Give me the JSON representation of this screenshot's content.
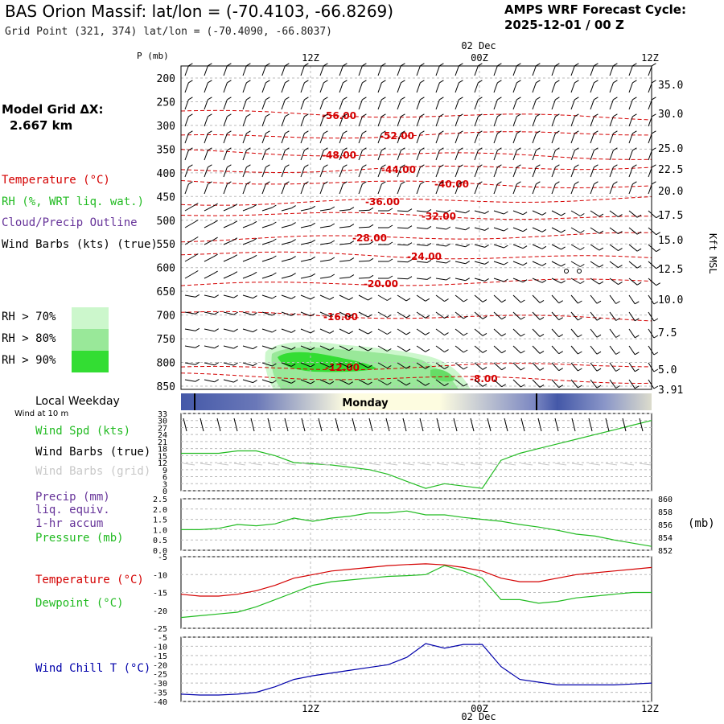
{
  "header": {
    "title": "BAS Orion Massif:  lat/lon = (-70.4103, -66.8269)",
    "subtitle": "Grid Point (321, 374) lat/lon = (-70.4090, -66.8037)",
    "cycle_label": "AMPS WRF Forecast Cycle:",
    "cycle_value": "2025-12-01 / 00  Z"
  },
  "model_grid": {
    "label": "Model Grid ΔX:",
    "value": "2.667 km"
  },
  "colors": {
    "temperature": "#d40000",
    "rh": "#22bb22",
    "cloud": "#663399",
    "windchill": "#0000aa",
    "rh70": "#ccf7cc",
    "rh80": "#99e899",
    "rh90": "#33dd33",
    "grid": "#bbbbbb",
    "weekday_dark": "#4458a8",
    "weekday_light": "#fdfce0"
  },
  "legend": {
    "temperature": "Temperature (°C)",
    "rh": "RH (%, WRT liq. wat.)",
    "cloud": "Cloud/Precip Outline",
    "wind": "Wind Barbs (kts) (true)",
    "rh70": "RH > 70%",
    "rh80": "RH > 80%",
    "rh90": "RH > 90%"
  },
  "time_axis": {
    "top_date": "02 Dec",
    "bottom_date": "02 Dec",
    "labels": [
      "12Z",
      "00Z",
      "12Z"
    ]
  },
  "weekday": {
    "label": "Local Weekday",
    "day": "Monday"
  },
  "wind10": {
    "caption": "Wind at 10 m",
    "spd": "Wind Spd (kts)",
    "barbs_true": "Wind Barbs (true)",
    "barbs_grid": "Wind Barbs (grid)"
  },
  "precip_legend": {
    "precip": "Precip (mm)",
    "liq": "liq. equiv.",
    "accum": "1-hr accum",
    "pressure": "Pressure (mb)",
    "right_unit": "(mb)"
  },
  "temp_legend": {
    "temp": "Temperature (°C)",
    "dew": "Dewpoint (°C)"
  },
  "chill_legend": {
    "chill": "Wind Chill T (°C)"
  },
  "chart_data": [
    {
      "type": "line",
      "name": "cross-section",
      "ylabel": "P (mb)",
      "y2label": "Kft MSL",
      "y_ticks": [
        200,
        250,
        300,
        350,
        400,
        450,
        500,
        550,
        600,
        650,
        700,
        750,
        800,
        850
      ],
      "y2_ticks": [
        "35.0",
        "30.0",
        "25.0",
        "22.5",
        "20.0",
        "17.5",
        "15.0",
        "12.5",
        "10.0",
        "7.5",
        "5.0",
        "3.91"
      ],
      "isotherm_labels": [
        "-56.00",
        "-52.00",
        "-48.00",
        "-44.00",
        "-40.00",
        "-36.00",
        "-32.00",
        "-28.00",
        "-24.00",
        "-20.00",
        "-16.00",
        "-12.00",
        "-8.00"
      ]
    },
    {
      "type": "line",
      "name": "wind-speed-10m",
      "y_ticks": [
        0,
        3,
        6,
        9,
        12,
        15,
        18,
        21,
        24,
        27,
        30,
        33
      ],
      "ylim": [
        0,
        33
      ],
      "series": [
        {
          "values": [
            16,
            16,
            16,
            17,
            17,
            15,
            12,
            11.5,
            11,
            10,
            9,
            7,
            4,
            1,
            3,
            2,
            1,
            13,
            16,
            18,
            20,
            22,
            24,
            26,
            28,
            30
          ]
        }
      ]
    },
    {
      "type": "line",
      "name": "precip-pressure",
      "y_ticks": [
        "2.5",
        "2.0",
        "1.5",
        "1.0",
        "0.5",
        "0.0"
      ],
      "y2_ticks": [
        860,
        858,
        856,
        854,
        852
      ],
      "ylim": [
        0,
        2.5
      ],
      "y2lim": [
        852,
        860
      ],
      "series": [
        {
          "values": [
            855.2,
            855.2,
            855.4,
            856.0,
            855.8,
            856.1,
            857.0,
            856.5,
            857.0,
            857.3,
            857.8,
            857.8,
            858.1,
            857.5,
            857.5,
            857.1,
            856.8,
            856.5,
            856.0,
            855.6,
            855.1,
            854.5,
            854.2,
            853.6,
            853.1,
            852.6
          ]
        }
      ]
    },
    {
      "type": "line",
      "name": "temperature-dewpoint",
      "y_ticks": [
        -5,
        -10,
        -15,
        -20,
        -25
      ],
      "ylim": [
        -25,
        -5
      ],
      "series": [
        {
          "values": [
            -15.5,
            -16,
            -16,
            -15.5,
            -14.5,
            -13,
            -11,
            -10,
            -9,
            -8.5,
            -8,
            -7.5,
            -7.2,
            -7,
            -7.3,
            -8,
            -9,
            -11,
            -12,
            -12,
            -11,
            -10,
            -9.5,
            -9,
            -8.5,
            -8
          ]
        },
        {
          "values": [
            -22,
            -21.5,
            -21,
            -20.5,
            -19,
            -17,
            -15,
            -13,
            -12,
            -11.5,
            -11,
            -10.5,
            -10.3,
            -10,
            -7.5,
            -9,
            -11,
            -17,
            -17,
            -18,
            -17.5,
            -16.5,
            -16,
            -15.5,
            -15,
            -15
          ]
        }
      ]
    },
    {
      "type": "line",
      "name": "wind-chill",
      "y_ticks": [
        -5,
        -10,
        -15,
        -20,
        -25,
        -30,
        -35,
        -40
      ],
      "ylim": [
        -40,
        -5
      ],
      "series": [
        {
          "values": [
            -36,
            -36.5,
            -36.5,
            -36,
            -35,
            -32,
            -28,
            -26,
            -24.5,
            -23,
            -21.5,
            -20,
            -16,
            -8.5,
            -11,
            -9,
            -9,
            -21,
            -28,
            -29.5,
            -31,
            -31,
            -31,
            -31,
            -30.5,
            -30
          ]
        }
      ]
    }
  ]
}
